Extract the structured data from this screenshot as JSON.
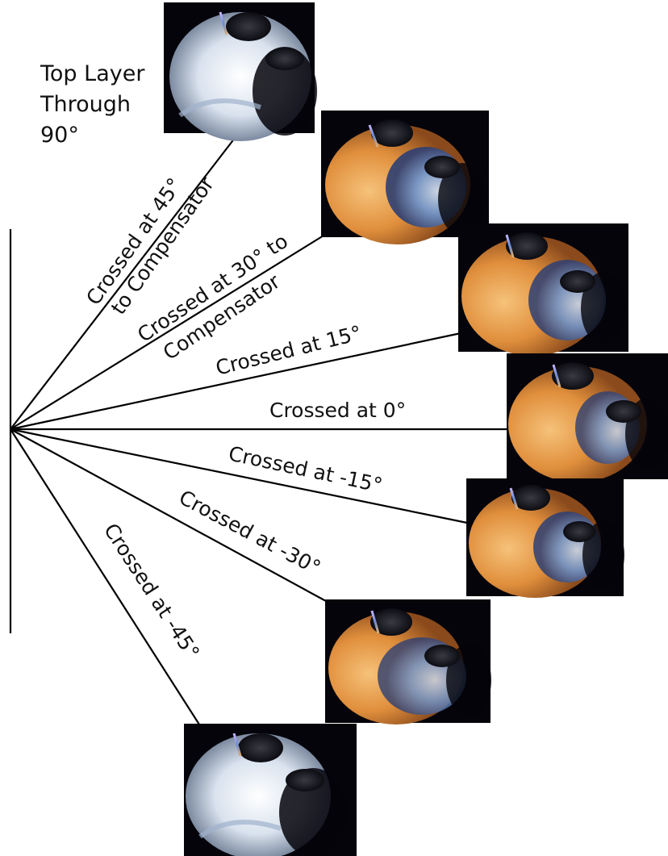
{
  "title": {
    "line1": "Top Layer",
    "line2": "Through",
    "line3": "90°"
  },
  "rays": [
    {
      "id": "p45",
      "lines": [
        "Crossed at 45°",
        "to Compensator"
      ]
    },
    {
      "id": "p30",
      "lines": [
        "Crossed at 30°  to",
        "Compensator"
      ]
    },
    {
      "id": "p15",
      "lines": [
        "Crossed at 15°"
      ]
    },
    {
      "id": "z0",
      "lines": [
        "Crossed at 0°"
      ]
    },
    {
      "id": "m15",
      "lines": [
        "Crossed at -15°"
      ]
    },
    {
      "id": "m30",
      "lines": [
        "Crossed at -30°"
      ]
    },
    {
      "id": "m45",
      "lines": [
        "Crossed at -45°"
      ]
    }
  ],
  "colors": {
    "line": "#000000",
    "photo_background": "#05040a",
    "bright_region": "#e8eef6",
    "warm_tone": "#e09a4a",
    "cool_tone": "#5a86c8",
    "violet_tone": "#7b5ab0"
  },
  "photos": [
    {
      "id": "top",
      "warmth": 0.05
    },
    {
      "id": "p45",
      "warmth": 0.55
    },
    {
      "id": "p30",
      "warmth": 0.8
    },
    {
      "id": "p15",
      "warmth": 0.95
    },
    {
      "id": "m15",
      "warmth": 0.85
    },
    {
      "id": "m30",
      "warmth": 0.7
    },
    {
      "id": "m45",
      "warmth": 0.05
    }
  ]
}
